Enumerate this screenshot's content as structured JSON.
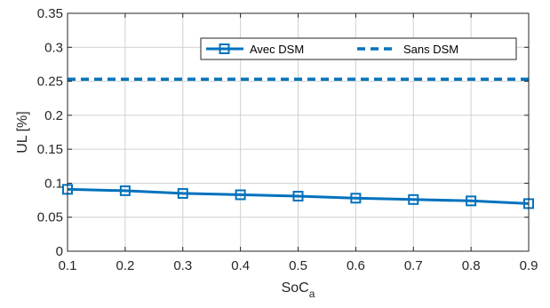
{
  "chart_data": {
    "type": "line",
    "xlabel": "SoC",
    "xlabel_sub": "a",
    "ylabel": "UL [%]",
    "xlim": [
      0.1,
      0.9
    ],
    "ylim": [
      0,
      0.35
    ],
    "xticks": [
      0.1,
      0.2,
      0.3,
      0.4,
      0.5,
      0.6,
      0.7,
      0.8,
      0.9
    ],
    "yticks": [
      0,
      0.05,
      0.1,
      0.15,
      0.2,
      0.25,
      0.3,
      0.35
    ],
    "xtick_labels": [
      "0.1",
      "0.2",
      "0.3",
      "0.4",
      "0.5",
      "0.6",
      "0.7",
      "0.8",
      "0.9"
    ],
    "ytick_labels": [
      "0",
      "0.05",
      "0.1",
      "0.15",
      "0.2",
      "0.25",
      "0.3",
      "0.35"
    ],
    "grid": true,
    "legend_position": "top-right",
    "series": [
      {
        "name": "Avec DSM",
        "style": "solid",
        "marker": "square",
        "color": "#0072BD",
        "x": [
          0.1,
          0.2,
          0.3,
          0.4,
          0.5,
          0.6,
          0.7,
          0.8,
          0.9
        ],
        "y": [
          0.091,
          0.089,
          0.085,
          0.083,
          0.081,
          0.078,
          0.076,
          0.074,
          0.07
        ]
      },
      {
        "name": "Sans DSM",
        "style": "dashed",
        "marker": "none",
        "color": "#0072BD",
        "x": [
          0.1,
          0.9
        ],
        "y": [
          0.253,
          0.253
        ]
      }
    ]
  }
}
